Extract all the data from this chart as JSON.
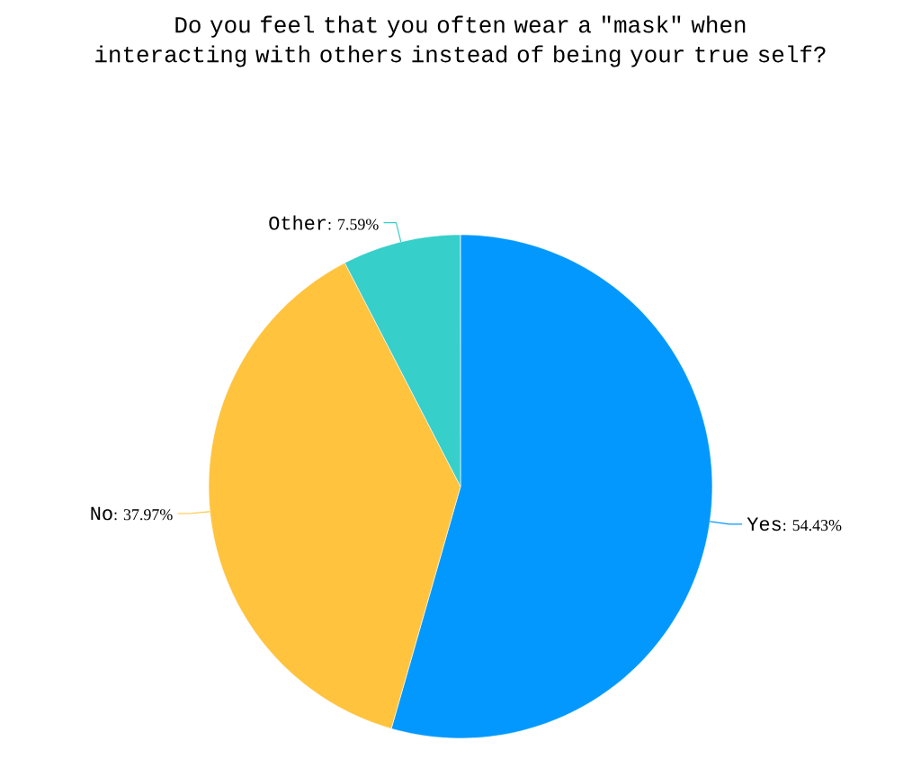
{
  "chart_data": {
    "type": "pie",
    "title": "Do you feel that you often wear a \"mask\" when interacting with others instead of being your true self?",
    "categories": [
      "Yes",
      "No",
      "Other"
    ],
    "values": [
      54.43,
      37.97,
      7.59
    ],
    "colors": [
      "#0398fe",
      "#ffc33d",
      "#36cfc9"
    ],
    "value_labels": [
      ": 54.43%",
      ": 37.97%",
      ": 7.59%"
    ]
  }
}
